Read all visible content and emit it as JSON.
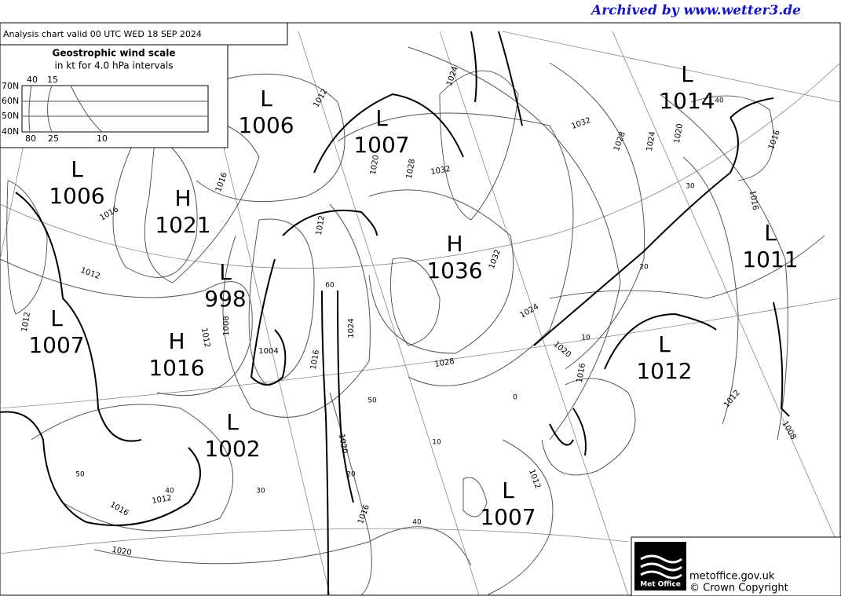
{
  "header": {
    "archived": "Archived by www.wetter3.de",
    "title": "Analysis chart  valid 00 UTC WED 18  SEP 2024"
  },
  "wind_scale": {
    "title": "Geostrophic wind scale",
    "subtitle": "in kt for 4.0 hPa intervals",
    "latitudes": [
      "70N",
      "60N",
      "50N",
      "40N"
    ],
    "top_speeds": [
      "40",
      "15"
    ],
    "bottom_speeds": [
      "80",
      "25",
      "10"
    ]
  },
  "pressure_centers": [
    {
      "type": "L",
      "value": "1006"
    },
    {
      "type": "L",
      "value": "1007"
    },
    {
      "type": "L",
      "value": "1006"
    },
    {
      "type": "H",
      "value": "1021"
    },
    {
      "type": "L",
      "value": "998"
    },
    {
      "type": "H",
      "value": "1036"
    },
    {
      "type": "L",
      "value": "1007"
    },
    {
      "type": "H",
      "value": "1016"
    },
    {
      "type": "L",
      "value": "1002"
    },
    {
      "type": "L",
      "value": "1014"
    },
    {
      "type": "L",
      "value": "1011"
    },
    {
      "type": "L",
      "value": "1012"
    },
    {
      "type": "L",
      "value": "1007"
    }
  ],
  "isobar_labels": [
    "1012",
    "1016",
    "1016",
    "1012",
    "1012",
    "1024",
    "1020",
    "1028",
    "1032",
    "1032",
    "1028",
    "1024",
    "1020",
    "1016",
    "1016",
    "1012",
    "1008",
    "1012",
    "1004",
    "1016",
    "1024",
    "1028",
    "1032",
    "1024",
    "1020",
    "1016",
    "1012",
    "1008",
    "1012",
    "1016",
    "1012",
    "1016",
    "1020",
    "1020"
  ],
  "latitude_labels": [
    "40",
    "30",
    "20",
    "10",
    "60",
    "50",
    "0",
    "10",
    "20",
    "40",
    "30",
    "40",
    "50"
  ],
  "footer": {
    "logo": "Met Office",
    "site": "metoffice.gov.uk",
    "copyright": "© Crown Copyright"
  }
}
